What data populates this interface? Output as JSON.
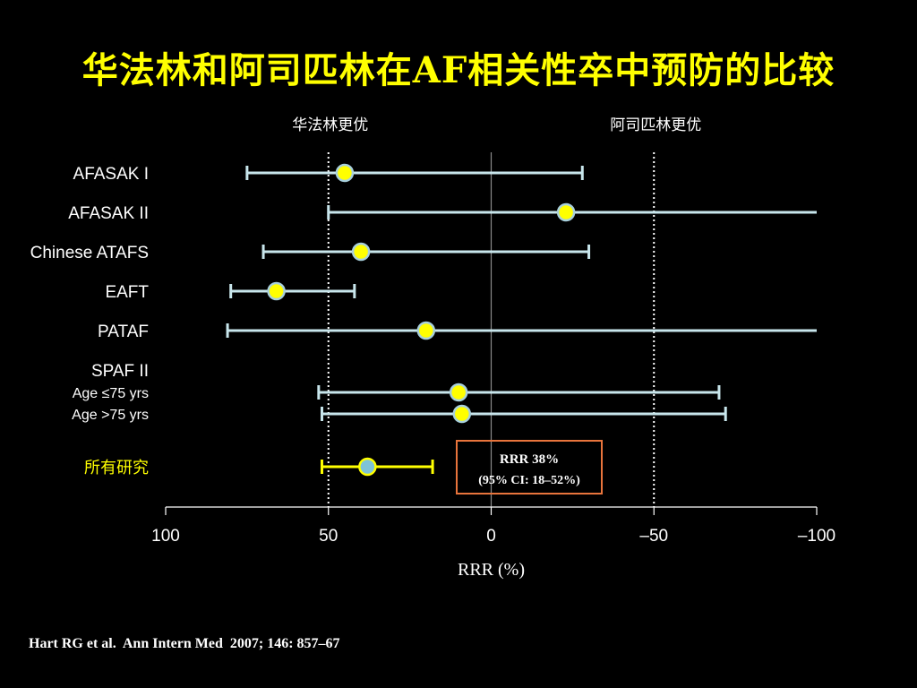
{
  "title": "华法林和阿司匹林在AF相关性卒中预防的比较",
  "citation": "Hart RG et al.  Ann Intern Med  2007; 146: 857–67",
  "colors": {
    "background": "#000000",
    "title": "#ffff00",
    "ci_line": "#c8e6ec",
    "point_fill": "#ffff00",
    "point_stroke": "#a8d0dc",
    "pooled_line": "#ffff00",
    "pooled_point_fill": "#7ec3d8",
    "pooled_point_stroke": "#ffff00",
    "box_border": "#e8743c",
    "axis": "#ffffff",
    "pooled_label": "#ffff00"
  },
  "chart_data": {
    "type": "forest",
    "xlabel": "RRR (%)",
    "x_reversed": true,
    "xlim": [
      100,
      -100
    ],
    "xticks": [
      100,
      50,
      0,
      -50,
      -100
    ],
    "xtick_labels": [
      "100",
      "50",
      "0",
      "–50",
      "–100"
    ],
    "reference_lines": [
      50,
      -50
    ],
    "zero_line": 0,
    "favors": {
      "left": "华法林更优",
      "right": "阿司匹林更优"
    },
    "group_headers": [
      {
        "label": "SPAF II",
        "before_row": 6
      }
    ],
    "studies": [
      {
        "label": "AFASAK I",
        "rrr": 45,
        "ci": [
          75,
          -28
        ],
        "arrow": false,
        "label_style": "main"
      },
      {
        "label": "AFASAK II",
        "rrr": -23,
        "ci": [
          50,
          -100
        ],
        "arrow": true,
        "label_style": "main"
      },
      {
        "label": "Chinese ATAFS",
        "rrr": 40,
        "ci": [
          70,
          -30
        ],
        "arrow": false,
        "label_style": "main"
      },
      {
        "label": "EAFT",
        "rrr": 66,
        "ci": [
          80,
          42
        ],
        "arrow": false,
        "label_style": "main"
      },
      {
        "label": "PATAF",
        "rrr": 20,
        "ci": [
          81,
          -100
        ],
        "arrow": true,
        "label_style": "main"
      },
      {
        "label": "Age ≤75 yrs",
        "rrr": 10,
        "ci": [
          53,
          -70
        ],
        "arrow": false,
        "label_style": "sub"
      },
      {
        "label": "Age >75 yrs",
        "rrr": 9,
        "ci": [
          52,
          -72
        ],
        "arrow": false,
        "label_style": "sub"
      }
    ],
    "pooled": {
      "label": "所有研究",
      "rrr": 38,
      "ci": [
        52,
        18
      ],
      "annotation_line1": "RRR 38%",
      "annotation_line2": "(95% CI: 18–52%)"
    }
  }
}
